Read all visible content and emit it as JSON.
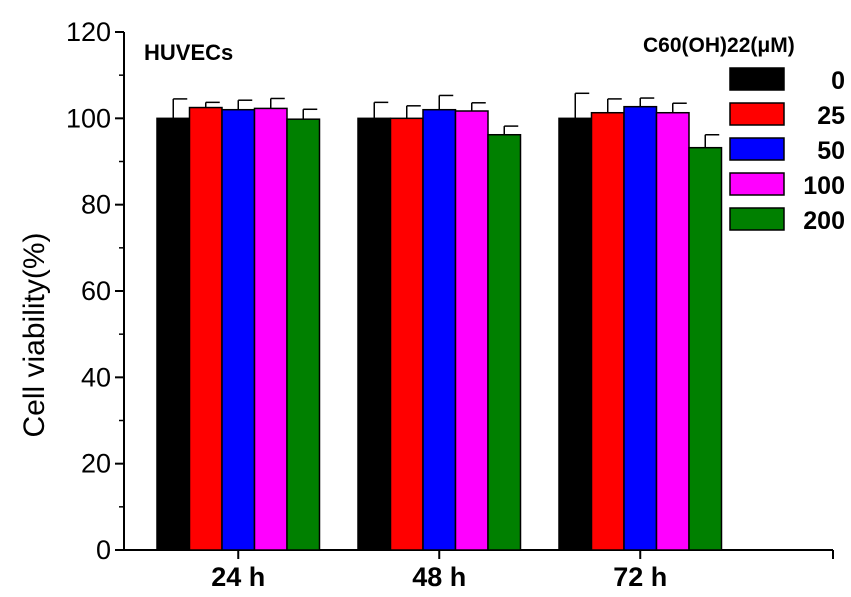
{
  "chart_data": {
    "type": "bar",
    "title": "HUVECs",
    "xlabel": "",
    "ylabel": "Cell viability(%)",
    "ylim": [
      0,
      120
    ],
    "yticks": [
      0,
      20,
      40,
      60,
      80,
      100,
      120
    ],
    "grid": false,
    "legend_title": "C60(OH)22(μM)",
    "legend_position": "top-right",
    "categories": [
      "24 h",
      "48 h",
      "72 h"
    ],
    "series": [
      {
        "name": "0",
        "color": "#000000",
        "values": [
          100.0,
          100.0,
          100.0
        ],
        "errors": [
          4.5,
          3.7,
          5.8
        ]
      },
      {
        "name": "25",
        "color": "#ff0000",
        "values": [
          102.5,
          100.0,
          101.3
        ],
        "errors": [
          1.2,
          2.9,
          3.2
        ]
      },
      {
        "name": "50",
        "color": "#0000ff",
        "values": [
          102.0,
          102.0,
          102.7
        ],
        "errors": [
          2.2,
          3.3,
          2.0
        ]
      },
      {
        "name": "100",
        "color": "#ff00ff",
        "values": [
          102.3,
          101.7,
          101.3
        ],
        "errors": [
          2.3,
          1.9,
          2.2
        ]
      },
      {
        "name": "200",
        "color": "#008000",
        "values": [
          99.8,
          96.2,
          93.2
        ],
        "errors": [
          2.3,
          2.0,
          3.0
        ]
      }
    ]
  }
}
